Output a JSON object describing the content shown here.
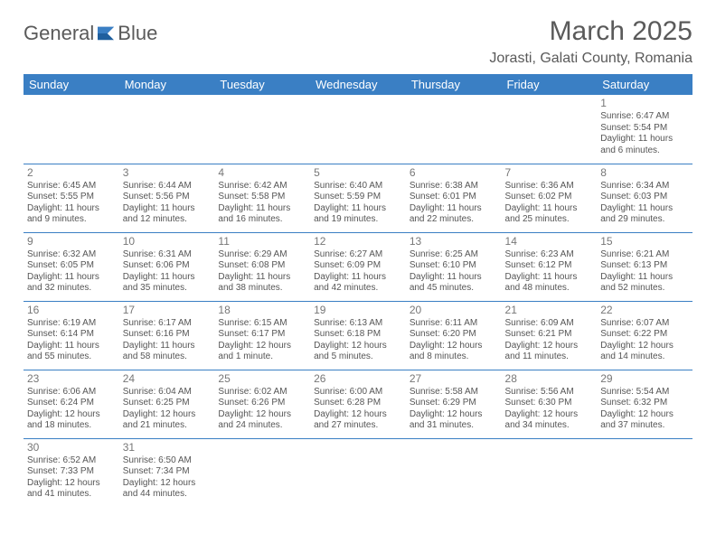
{
  "logo": {
    "text1": "General",
    "text2": "Blue"
  },
  "title": "March 2025",
  "location": "Jorasti, Galati County, Romania",
  "colors": {
    "brand": "#3a7fc4",
    "text": "#5a5a5a",
    "cellText": "#555555",
    "bg": "#ffffff"
  },
  "weekdays": [
    "Sunday",
    "Monday",
    "Tuesday",
    "Wednesday",
    "Thursday",
    "Friday",
    "Saturday"
  ],
  "grid": {
    "firstWeekday": 6,
    "daysInMonth": 31
  },
  "days": {
    "1": {
      "sunrise": "6:47 AM",
      "sunset": "5:54 PM",
      "daylight": "11 hours and 6 minutes."
    },
    "2": {
      "sunrise": "6:45 AM",
      "sunset": "5:55 PM",
      "daylight": "11 hours and 9 minutes."
    },
    "3": {
      "sunrise": "6:44 AM",
      "sunset": "5:56 PM",
      "daylight": "11 hours and 12 minutes."
    },
    "4": {
      "sunrise": "6:42 AM",
      "sunset": "5:58 PM",
      "daylight": "11 hours and 16 minutes."
    },
    "5": {
      "sunrise": "6:40 AM",
      "sunset": "5:59 PM",
      "daylight": "11 hours and 19 minutes."
    },
    "6": {
      "sunrise": "6:38 AM",
      "sunset": "6:01 PM",
      "daylight": "11 hours and 22 minutes."
    },
    "7": {
      "sunrise": "6:36 AM",
      "sunset": "6:02 PM",
      "daylight": "11 hours and 25 minutes."
    },
    "8": {
      "sunrise": "6:34 AM",
      "sunset": "6:03 PM",
      "daylight": "11 hours and 29 minutes."
    },
    "9": {
      "sunrise": "6:32 AM",
      "sunset": "6:05 PM",
      "daylight": "11 hours and 32 minutes."
    },
    "10": {
      "sunrise": "6:31 AM",
      "sunset": "6:06 PM",
      "daylight": "11 hours and 35 minutes."
    },
    "11": {
      "sunrise": "6:29 AM",
      "sunset": "6:08 PM",
      "daylight": "11 hours and 38 minutes."
    },
    "12": {
      "sunrise": "6:27 AM",
      "sunset": "6:09 PM",
      "daylight": "11 hours and 42 minutes."
    },
    "13": {
      "sunrise": "6:25 AM",
      "sunset": "6:10 PM",
      "daylight": "11 hours and 45 minutes."
    },
    "14": {
      "sunrise": "6:23 AM",
      "sunset": "6:12 PM",
      "daylight": "11 hours and 48 minutes."
    },
    "15": {
      "sunrise": "6:21 AM",
      "sunset": "6:13 PM",
      "daylight": "11 hours and 52 minutes."
    },
    "16": {
      "sunrise": "6:19 AM",
      "sunset": "6:14 PM",
      "daylight": "11 hours and 55 minutes."
    },
    "17": {
      "sunrise": "6:17 AM",
      "sunset": "6:16 PM",
      "daylight": "11 hours and 58 minutes."
    },
    "18": {
      "sunrise": "6:15 AM",
      "sunset": "6:17 PM",
      "daylight": "12 hours and 1 minute."
    },
    "19": {
      "sunrise": "6:13 AM",
      "sunset": "6:18 PM",
      "daylight": "12 hours and 5 minutes."
    },
    "20": {
      "sunrise": "6:11 AM",
      "sunset": "6:20 PM",
      "daylight": "12 hours and 8 minutes."
    },
    "21": {
      "sunrise": "6:09 AM",
      "sunset": "6:21 PM",
      "daylight": "12 hours and 11 minutes."
    },
    "22": {
      "sunrise": "6:07 AM",
      "sunset": "6:22 PM",
      "daylight": "12 hours and 14 minutes."
    },
    "23": {
      "sunrise": "6:06 AM",
      "sunset": "6:24 PM",
      "daylight": "12 hours and 18 minutes."
    },
    "24": {
      "sunrise": "6:04 AM",
      "sunset": "6:25 PM",
      "daylight": "12 hours and 21 minutes."
    },
    "25": {
      "sunrise": "6:02 AM",
      "sunset": "6:26 PM",
      "daylight": "12 hours and 24 minutes."
    },
    "26": {
      "sunrise": "6:00 AM",
      "sunset": "6:28 PM",
      "daylight": "12 hours and 27 minutes."
    },
    "27": {
      "sunrise": "5:58 AM",
      "sunset": "6:29 PM",
      "daylight": "12 hours and 31 minutes."
    },
    "28": {
      "sunrise": "5:56 AM",
      "sunset": "6:30 PM",
      "daylight": "12 hours and 34 minutes."
    },
    "29": {
      "sunrise": "5:54 AM",
      "sunset": "6:32 PM",
      "daylight": "12 hours and 37 minutes."
    },
    "30": {
      "sunrise": "6:52 AM",
      "sunset": "7:33 PM",
      "daylight": "12 hours and 41 minutes."
    },
    "31": {
      "sunrise": "6:50 AM",
      "sunset": "7:34 PM",
      "daylight": "12 hours and 44 minutes."
    }
  },
  "labels": {
    "sunrise": "Sunrise: ",
    "sunset": "Sunset: ",
    "daylight": "Daylight: "
  }
}
